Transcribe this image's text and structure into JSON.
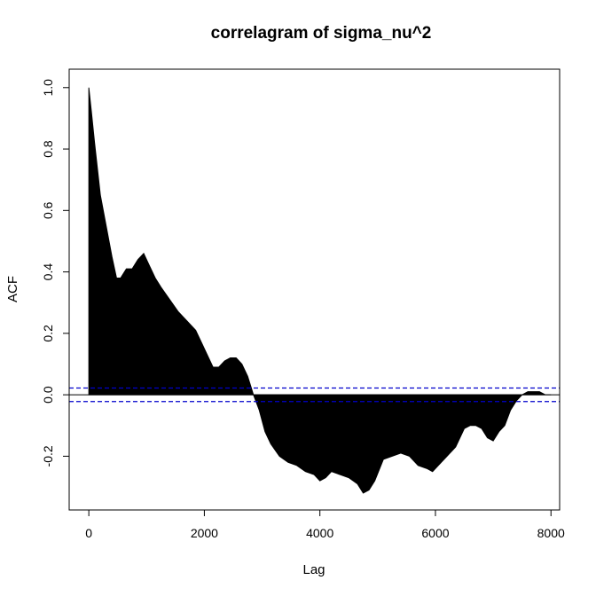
{
  "chart_data": {
    "type": "area",
    "title": "correlagram of sigma_nu^2",
    "xlabel": "Lag",
    "ylabel": "ACF",
    "xlim": [
      -340,
      8150
    ],
    "ylim": [
      -0.375,
      1.06
    ],
    "xticks": [
      0,
      2000,
      4000,
      6000,
      8000
    ],
    "xtick_labels": [
      "0",
      "2000",
      "4000",
      "6000",
      "8000"
    ],
    "yticks": [
      -0.2,
      0.0,
      0.2,
      0.4,
      0.6,
      0.8,
      1.0
    ],
    "ytick_labels": [
      "-0.2",
      "0.0",
      "0.2",
      "0.4",
      "0.6",
      "0.8",
      "1.0"
    ],
    "grid": false,
    "bar_color": "#000000",
    "confidence_band": {
      "values": [
        0.022,
        -0.022
      ],
      "color": "#0000cc",
      "style": "dashed"
    },
    "series": [
      {
        "lag": [
          0,
          40,
          100,
          200,
          300,
          400,
          480,
          550,
          650,
          750,
          850,
          950,
          1050,
          1150,
          1250,
          1400,
          1550,
          1700,
          1850,
          1950,
          2050,
          2150,
          2250,
          2350,
          2450,
          2550,
          2650,
          2750,
          2850,
          2950,
          3050,
          3150,
          3300,
          3450,
          3600,
          3750,
          3900,
          4000,
          4100,
          4200,
          4350,
          4500,
          4650,
          4750,
          4850,
          4950,
          5100,
          5250,
          5400,
          5550,
          5700,
          5850,
          5950,
          6050,
          6200,
          6350,
          6500,
          6600,
          6700,
          6800,
          6900,
          7000,
          7100,
          7200,
          7300,
          7400,
          7500,
          7600,
          7700,
          7800,
          7900,
          8000
        ],
        "acf": [
          1.0,
          0.93,
          0.82,
          0.65,
          0.55,
          0.45,
          0.38,
          0.38,
          0.41,
          0.41,
          0.44,
          0.46,
          0.42,
          0.38,
          0.35,
          0.31,
          0.27,
          0.24,
          0.21,
          0.17,
          0.13,
          0.09,
          0.09,
          0.11,
          0.12,
          0.12,
          0.1,
          0.06,
          0.0,
          -0.05,
          -0.12,
          -0.16,
          -0.2,
          -0.22,
          -0.23,
          -0.25,
          -0.26,
          -0.28,
          -0.27,
          -0.25,
          -0.26,
          -0.27,
          -0.29,
          -0.32,
          -0.31,
          -0.28,
          -0.21,
          -0.2,
          -0.19,
          -0.2,
          -0.23,
          -0.24,
          -0.25,
          -0.23,
          -0.2,
          -0.17,
          -0.11,
          -0.1,
          -0.1,
          -0.11,
          -0.14,
          -0.15,
          -0.12,
          -0.1,
          -0.05,
          -0.02,
          0.0,
          0.01,
          0.01,
          0.01,
          0.0,
          0.0
        ]
      }
    ]
  }
}
